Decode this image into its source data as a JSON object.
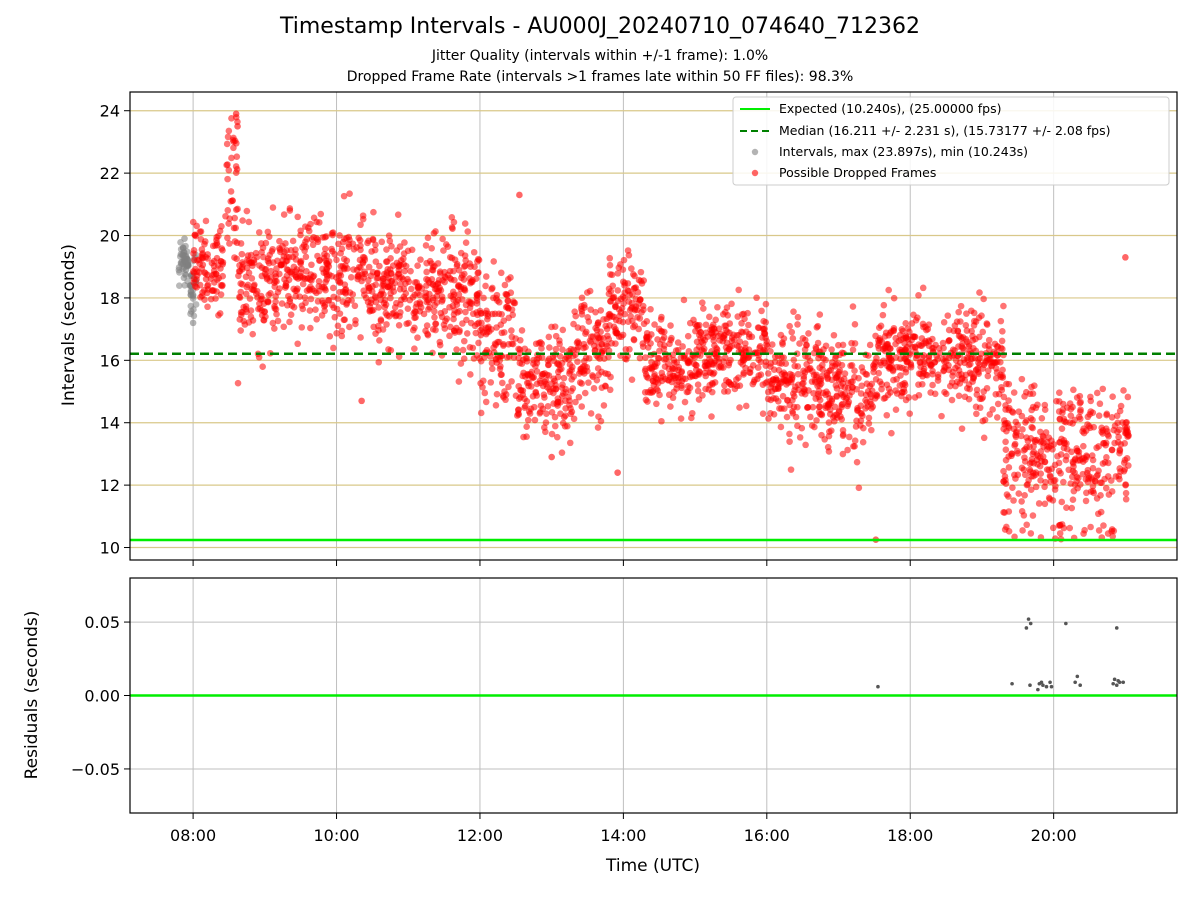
{
  "title": "Timestamp Intervals - AU000J_20240710_074640_712362",
  "subtitle_lines": [
    "Jitter Quality (intervals within +/-1 frame): 1.0%",
    "Dropped Frame Rate (intervals >1 frames late within 50 FF files): 98.3%"
  ],
  "colors": {
    "expected": "#00ee00",
    "median": "#008000",
    "dropped": "#ff0000",
    "intervals": "#808080",
    "gridline": "#d9c88a",
    "grid": "#bfbfbf"
  },
  "chart_data": [
    {
      "type": "scatter",
      "panel": "top",
      "xlabel": "",
      "ylabel": "Intervals (seconds)",
      "xlim": [
        7.12,
        21.72
      ],
      "ylim": [
        9.6,
        24.6
      ],
      "yticks": [
        10,
        12,
        14,
        16,
        18,
        20,
        22,
        24
      ],
      "ytick_labels": [
        "10",
        "12",
        "14",
        "16",
        "18",
        "20",
        "22",
        "24"
      ],
      "grid": true,
      "legend_position": "top-right",
      "legend": [
        "Expected (10.240s), (25.00000 fps)",
        "Median (16.211 +/- 2.231 s), (15.73177 +/- 2.08 fps)",
        "Intervals, max (23.897s), min (10.243s)",
        "Possible Dropped Frames"
      ],
      "expected_line": 10.24,
      "median_line": 16.211,
      "intervals_cluster": {
        "time_range_hours": [
          7.8,
          8.05
        ],
        "value_range": [
          17.2,
          19.9
        ],
        "sample_points": [
          [
            7.83,
            19.4
          ],
          [
            7.86,
            19.6
          ],
          [
            7.9,
            18.9
          ],
          [
            7.93,
            19.2
          ],
          [
            7.97,
            18.4
          ],
          [
            8.0,
            18.1
          ],
          [
            8.0,
            17.2
          ],
          [
            7.88,
            19.9
          ]
        ]
      },
      "dropped_segments": [
        {
          "t0": 8.0,
          "t1": 8.42,
          "center": 19.0,
          "spread": 0.9
        },
        {
          "t0": 8.45,
          "t1": 8.62,
          "center": 21.5,
          "spread": 2.3
        },
        {
          "t0": 8.62,
          "t1": 9.2,
          "center": 18.4,
          "spread": 1.2
        },
        {
          "t0": 9.2,
          "t1": 10.0,
          "center": 18.7,
          "spread": 1.2
        },
        {
          "t0": 10.0,
          "t1": 11.0,
          "center": 18.5,
          "spread": 1.2
        },
        {
          "t0": 11.0,
          "t1": 12.0,
          "center": 18.1,
          "spread": 1.3
        },
        {
          "t0": 12.0,
          "t1": 12.5,
          "center": 16.5,
          "spread": 1.6
        },
        {
          "t0": 12.5,
          "t1": 13.3,
          "center": 15.2,
          "spread": 1.1
        },
        {
          "t0": 13.3,
          "t1": 13.8,
          "center": 16.2,
          "spread": 1.2
        },
        {
          "t0": 13.8,
          "t1": 14.3,
          "center": 17.8,
          "spread": 1.1
        },
        {
          "t0": 14.3,
          "t1": 15.2,
          "center": 15.9,
          "spread": 1.0
        },
        {
          "t0": 15.2,
          "t1": 16.0,
          "center": 16.2,
          "spread": 1.1
        },
        {
          "t0": 16.0,
          "t1": 16.8,
          "center": 15.2,
          "spread": 1.2
        },
        {
          "t0": 16.8,
          "t1": 17.5,
          "center": 14.9,
          "spread": 1.2
        },
        {
          "t0": 17.5,
          "t1": 18.5,
          "center": 16.2,
          "spread": 1.0
        },
        {
          "t0": 18.5,
          "t1": 19.3,
          "center": 16.0,
          "spread": 1.1
        },
        {
          "t0": 19.3,
          "t1": 21.05,
          "center": 13.0,
          "spread": 1.2
        }
      ],
      "dropped_outliers": [
        [
          8.6,
          23.9
        ],
        [
          8.62,
          23.5
        ],
        [
          12.55,
          21.3
        ],
        [
          13.92,
          12.4
        ],
        [
          10.35,
          14.7
        ],
        [
          17.52,
          10.25
        ],
        [
          21.0,
          19.3
        ],
        [
          13.0,
          12.9
        ]
      ]
    },
    {
      "type": "scatter",
      "panel": "bottom",
      "xlabel": "Time (UTC)",
      "ylabel": "Residuals (seconds)",
      "xlim": [
        7.12,
        21.72
      ],
      "ylim": [
        -0.08,
        0.08
      ],
      "xticks": [
        8,
        10,
        12,
        14,
        16,
        18,
        20
      ],
      "xtick_labels": [
        "08:00",
        "10:00",
        "12:00",
        "14:00",
        "16:00",
        "18:00",
        "20:00"
      ],
      "yticks": [
        -0.05,
        0.0,
        0.05
      ],
      "ytick_labels": [
        "−0.05",
        "0.00",
        "0.05"
      ],
      "grid": true,
      "zero_line": 0.0,
      "points": [
        [
          17.55,
          0.006
        ],
        [
          19.42,
          0.008
        ],
        [
          19.62,
          0.046
        ],
        [
          19.65,
          0.052
        ],
        [
          19.68,
          0.049
        ],
        [
          19.67,
          0.007
        ],
        [
          19.78,
          0.004
        ],
        [
          19.8,
          0.008
        ],
        [
          19.83,
          0.009
        ],
        [
          19.85,
          0.007
        ],
        [
          19.9,
          0.006
        ],
        [
          19.95,
          0.009
        ],
        [
          19.97,
          0.006
        ],
        [
          20.17,
          0.049
        ],
        [
          20.3,
          0.009
        ],
        [
          20.33,
          0.013
        ],
        [
          20.37,
          0.007
        ],
        [
          20.83,
          0.008
        ],
        [
          20.85,
          0.011
        ],
        [
          20.88,
          0.007
        ],
        [
          20.9,
          0.01
        ],
        [
          20.92,
          0.009
        ],
        [
          20.97,
          0.009
        ],
        [
          20.88,
          0.046
        ]
      ]
    }
  ]
}
